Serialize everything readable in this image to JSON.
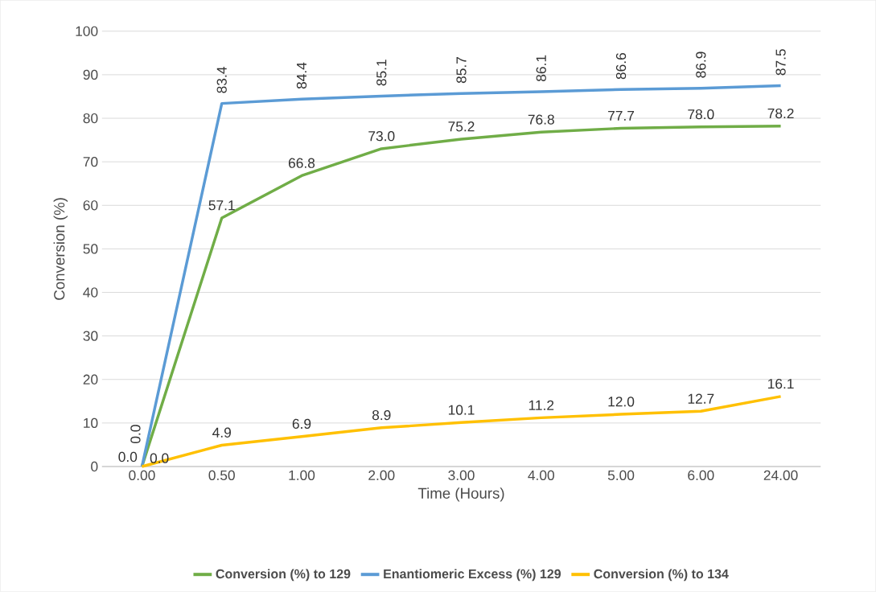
{
  "chart_data": {
    "type": "line",
    "xlabel": "Time (Hours)",
    "ylabel": "Conversion (%)",
    "categories": [
      "0.00",
      "0.50",
      "1.00",
      "2.00",
      "3.00",
      "4.00",
      "5.00",
      "6.00",
      "24.00"
    ],
    "series": [
      {
        "name": "Conversion (%) to 129",
        "color": "#70ad47",
        "values": [
          0,
          57.1,
          66.8,
          73.0,
          75.2,
          76.8,
          77.7,
          78.0,
          78.2
        ],
        "value_labels": [
          "0.0",
          "57.1",
          "66.8",
          "73.0",
          "75.2",
          "76.8",
          "77.7",
          "78.0",
          "78.2"
        ]
      },
      {
        "name": "Enantiomeric Excess (%) 129",
        "color": "#5b9bd5",
        "values": [
          0,
          83.4,
          84.4,
          85.1,
          85.7,
          86.1,
          86.6,
          86.9,
          87.5
        ],
        "value_labels": [
          "0.0",
          "83.4",
          "84.4",
          "85.1",
          "85.7",
          "86.1",
          "86.6",
          "86.9",
          "87.5"
        ]
      },
      {
        "name": "Conversion (%) to 134",
        "color": "#ffc000",
        "values": [
          0,
          4.9,
          6.9,
          8.9,
          10.1,
          11.2,
          12.0,
          12.7,
          16.1
        ],
        "value_labels": [
          "0.0",
          "4.9",
          "6.9",
          "8.9",
          "10.1",
          "11.2",
          "12.0",
          "12.7",
          "16.1"
        ]
      }
    ],
    "ylim": [
      0,
      100
    ],
    "yticks": [
      0,
      10,
      20,
      30,
      40,
      50,
      60,
      70,
      80,
      90,
      100
    ],
    "grid": "y",
    "legend": "bottom"
  }
}
